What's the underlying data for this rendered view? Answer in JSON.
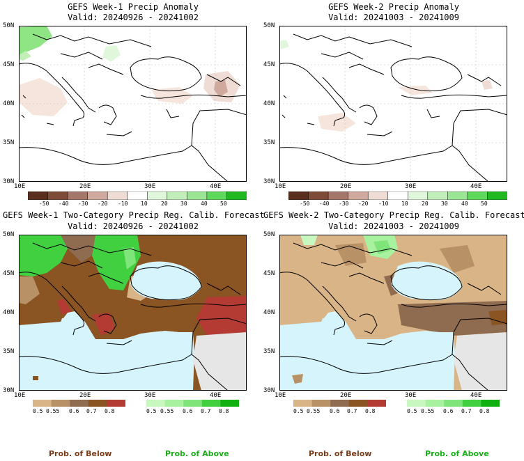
{
  "panels": [
    {
      "title": "GEFS Week-1 Precip Anomaly",
      "valid": "Valid: 20240926 - 20241002"
    },
    {
      "title": "GEFS Week-2 Precip Anomaly",
      "valid": "Valid: 20241003 - 20241009"
    },
    {
      "title": "GEFS Week-1 Two-Category Precip Reg. Calib. Forecast",
      "valid": "Valid: 20240926 - 20241002"
    },
    {
      "title": "GEFS Week-2 Two-Category Precip Reg. Calib. Forecast",
      "valid": "Valid: 20241003 - 20241009"
    }
  ],
  "lat_labels": [
    "50N",
    "45N",
    "40N",
    "35N",
    "30N"
  ],
  "lon_labels": [
    "10E",
    "20E",
    "30E",
    "40E"
  ],
  "anomaly_colorbar": {
    "ticks": [
      "-50",
      "-40",
      "-30",
      "-20",
      "-10",
      "10",
      "20",
      "30",
      "40",
      "50"
    ],
    "colors": [
      "#5a2e1e",
      "#7d4b37",
      "#a5776a",
      "#cfa99e",
      "#efdcd4",
      "#ffffff",
      "#e1f7dc",
      "#c2efb9",
      "#9be694",
      "#5fd95c",
      "#1fb81f"
    ]
  },
  "prob_below_colorbar": {
    "ticks": [
      "0.5",
      "0.55",
      "0.6",
      "0.7",
      "0.8"
    ],
    "colors": [
      "#d8b486",
      "#b99167",
      "#8f6b4f",
      "#8b5423",
      "#b43a34"
    ]
  },
  "prob_above_colorbar": {
    "ticks": [
      "0.5",
      "0.55",
      "0.6",
      "0.7",
      "0.8"
    ],
    "colors": [
      "#c8f7c0",
      "#a8f19e",
      "#7fe57a",
      "#40d040",
      "#10b010"
    ]
  },
  "legend": {
    "below": "Prob. of Below",
    "above": "Prob. of Above"
  },
  "colors": {
    "sea": "#d6f4fb",
    "nodata": "#e6e6e6",
    "below_text": "#7a3b1a",
    "above_text": "#1ab01a"
  }
}
